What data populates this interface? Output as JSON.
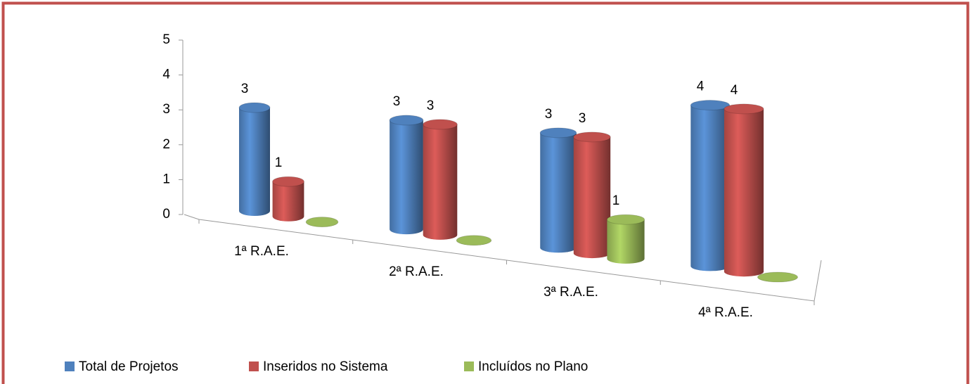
{
  "chart_data": {
    "type": "bar3d",
    "categories": [
      "1ª R.A.E.",
      "2ª R.A.E.",
      "3ª R.A.E.",
      "4ª R.A.E."
    ],
    "series": [
      {
        "name": "Total de Projetos",
        "color": "#4f81bd",
        "values": [
          3,
          3,
          3,
          4
        ]
      },
      {
        "name": "Inseridos no Sistema",
        "color": "#c0504d",
        "values": [
          1,
          3,
          3,
          4
        ]
      },
      {
        "name": "Incluídos no Plano",
        "color": "#9bbb59",
        "values": [
          0,
          0,
          1,
          0
        ]
      }
    ],
    "ylim": [
      0,
      5
    ],
    "yticks": [
      0,
      1,
      2,
      3,
      4,
      5
    ],
    "legend": "bottom"
  }
}
